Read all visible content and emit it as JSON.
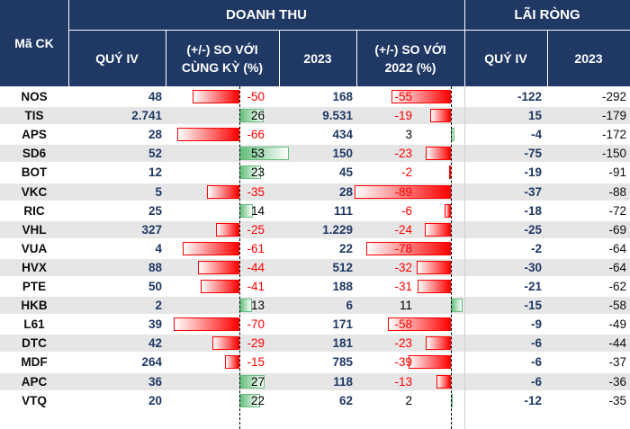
{
  "headers": {
    "ticker": "Mã CK",
    "revenue_group": "DOANH THU",
    "profit_group": "LÃI RÒNG",
    "rev_q4": "QUÝ IV",
    "rev_q4_chg": "(+/-) SO VỚI CÙNG KỲ (%)",
    "rev_year": "2023",
    "rev_year_chg": "(+/-) SO VỚI 2022 (%)",
    "profit_q4": "QUÝ IV",
    "profit_year": "2023"
  },
  "colors": {
    "header_bg": "#1f3864",
    "value_text": "#1f3864",
    "negative": "#ff0000",
    "positive": "#63be7b",
    "stripe": "#e6e6e6"
  },
  "chart_data": {
    "type": "table",
    "columns": [
      "Mã CK",
      "DOANH THU QUÝ IV",
      "(+/-) SO VỚI CÙNG KỲ (%)",
      "DOANH THU 2023",
      "(+/-) SO VỚI 2022 (%)",
      "LÃI RÒNG QUÝ IV",
      "LÃI RÒNG 2023"
    ],
    "rows": [
      {
        "ticker": "NOS",
        "rev_q4": "48",
        "rev_q4_chg": -50,
        "rev_year": "168",
        "rev_year_chg": -55,
        "profit_q4": "-122",
        "profit_year": "-292"
      },
      {
        "ticker": "TIS",
        "rev_q4": "2.741",
        "rev_q4_chg": 26,
        "rev_year": "9.531",
        "rev_year_chg": -19,
        "profit_q4": "15",
        "profit_year": "-179"
      },
      {
        "ticker": "APS",
        "rev_q4": "28",
        "rev_q4_chg": -66,
        "rev_year": "434",
        "rev_year_chg": 3,
        "profit_q4": "-4",
        "profit_year": "-172"
      },
      {
        "ticker": "SD6",
        "rev_q4": "52",
        "rev_q4_chg": 53,
        "rev_year": "150",
        "rev_year_chg": -23,
        "profit_q4": "-75",
        "profit_year": "-150"
      },
      {
        "ticker": "BOT",
        "rev_q4": "12",
        "rev_q4_chg": 23,
        "rev_year": "45",
        "rev_year_chg": -2,
        "profit_q4": "-19",
        "profit_year": "-91"
      },
      {
        "ticker": "VKC",
        "rev_q4": "5",
        "rev_q4_chg": -35,
        "rev_year": "28",
        "rev_year_chg": -89,
        "profit_q4": "-37",
        "profit_year": "-88"
      },
      {
        "ticker": "RIC",
        "rev_q4": "25",
        "rev_q4_chg": 14,
        "rev_year": "111",
        "rev_year_chg": -6,
        "profit_q4": "-18",
        "profit_year": "-72"
      },
      {
        "ticker": "VHL",
        "rev_q4": "327",
        "rev_q4_chg": -25,
        "rev_year": "1.229",
        "rev_year_chg": -24,
        "profit_q4": "-25",
        "profit_year": "-69"
      },
      {
        "ticker": "VUA",
        "rev_q4": "4",
        "rev_q4_chg": -61,
        "rev_year": "22",
        "rev_year_chg": -78,
        "profit_q4": "-2",
        "profit_year": "-64"
      },
      {
        "ticker": "HVX",
        "rev_q4": "88",
        "rev_q4_chg": -44,
        "rev_year": "512",
        "rev_year_chg": -32,
        "profit_q4": "-30",
        "profit_year": "-64"
      },
      {
        "ticker": "PTE",
        "rev_q4": "50",
        "rev_q4_chg": -41,
        "rev_year": "188",
        "rev_year_chg": -31,
        "profit_q4": "-21",
        "profit_year": "-62"
      },
      {
        "ticker": "HKB",
        "rev_q4": "2",
        "rev_q4_chg": 13,
        "rev_year": "6",
        "rev_year_chg": 11,
        "profit_q4": "-15",
        "profit_year": "-58"
      },
      {
        "ticker": "L61",
        "rev_q4": "39",
        "rev_q4_chg": -70,
        "rev_year": "171",
        "rev_year_chg": -58,
        "profit_q4": "-9",
        "profit_year": "-49"
      },
      {
        "ticker": "DTC",
        "rev_q4": "42",
        "rev_q4_chg": -29,
        "rev_year": "181",
        "rev_year_chg": -23,
        "profit_q4": "-6",
        "profit_year": "-44"
      },
      {
        "ticker": "MDF",
        "rev_q4": "264",
        "rev_q4_chg": -15,
        "rev_year": "785",
        "rev_year_chg": -39,
        "profit_q4": "-6",
        "profit_year": "-37"
      },
      {
        "ticker": "APC",
        "rev_q4": "36",
        "rev_q4_chg": 27,
        "rev_year": "118",
        "rev_year_chg": -13,
        "profit_q4": "-6",
        "profit_year": "-36"
      },
      {
        "ticker": "VTQ",
        "rev_q4": "20",
        "rev_q4_chg": 22,
        "rev_year": "62",
        "rev_year_chg": 2,
        "profit_q4": "-12",
        "profit_year": "-35"
      }
    ]
  }
}
